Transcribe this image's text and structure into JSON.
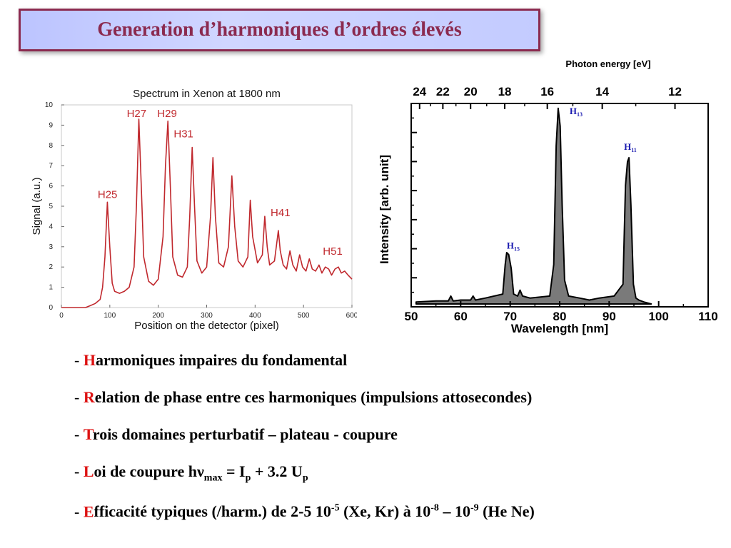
{
  "slide": {
    "title": "Generation d’harmoniques d’ordres élevés",
    "bullets": [
      {
        "first": "H",
        "rest": "armoniques impaires du fondamental"
      },
      {
        "first": "R",
        "rest": "elation de phase entre ces harmoniques (impulsions attosecondes)"
      },
      {
        "first": "T",
        "rest": "rois domaines perturbatif – plateau - coupure"
      },
      {
        "first": "L",
        "rest": "oi de coupure hν_{max} = I_{p} + 3.2 U_{p}"
      },
      {
        "first": "E",
        "rest": "fficacité typiques (/harm.) de 2-5 10^{-5} (Xe, Kr) à 10^{-8} – 10^{-9} (He Ne)"
      }
    ]
  },
  "chart_data": [
    {
      "type": "line",
      "title": "Spectrum in Xenon at 1800 nm",
      "xlabel": "Position on the detector (pixel)",
      "ylabel": "Signal (a.u.)",
      "xlim": [
        0,
        600
      ],
      "ylim": [
        0,
        10
      ],
      "xticks": [
        0,
        100,
        200,
        300,
        400,
        500,
        600
      ],
      "yticks": [
        0,
        1,
        2,
        3,
        4,
        5,
        6,
        7,
        8,
        9,
        10
      ],
      "color": "#c0282d",
      "series": [
        {
          "x": [
            0,
            50,
            60,
            70,
            80,
            85,
            90,
            95,
            100,
            105,
            110,
            120,
            130,
            140,
            150,
            155,
            160,
            165,
            170,
            180,
            190,
            200,
            210,
            215,
            220,
            225,
            230,
            240,
            250,
            260,
            265,
            270,
            275,
            280,
            290,
            300,
            308,
            313,
            318,
            325,
            335,
            345,
            352,
            358,
            365,
            375,
            385,
            390,
            395,
            405,
            415,
            420,
            425,
            430,
            440,
            448,
            452,
            458,
            465,
            472,
            478,
            485,
            492,
            498,
            505,
            512,
            518,
            525,
            532,
            538,
            545,
            552,
            558,
            565,
            572,
            578,
            585,
            592,
            600
          ],
          "y": [
            0,
            0,
            0.1,
            0.2,
            0.4,
            1,
            2.5,
            5.2,
            3,
            1.2,
            0.8,
            0.7,
            0.8,
            1,
            2,
            5,
            9.3,
            6,
            2.5,
            1.3,
            1.1,
            1.4,
            3.5,
            7,
            9.2,
            6,
            2.5,
            1.6,
            1.5,
            2,
            4.5,
            7.9,
            5,
            2.3,
            1.7,
            2,
            4.5,
            7.4,
            4.5,
            2.2,
            2,
            3,
            6.5,
            4,
            2.3,
            2,
            2.5,
            5.3,
            3.5,
            2.2,
            2.6,
            4.5,
            3,
            2.1,
            2.3,
            3.8,
            2.8,
            2.1,
            1.9,
            2.8,
            2.1,
            1.8,
            2.6,
            2,
            1.8,
            2.4,
            1.9,
            1.8,
            2.1,
            1.7,
            2,
            1.9,
            1.6,
            1.9,
            2,
            1.7,
            1.8,
            1.6,
            1.4
          ]
        }
      ],
      "annotations": [
        {
          "text": "H25",
          "x": 75,
          "y": 5.4
        },
        {
          "text": "H27",
          "x": 135,
          "y": 9.4
        },
        {
          "text": "H29",
          "x": 198,
          "y": 9.4
        },
        {
          "text": "H31",
          "x": 232,
          "y": 8.4
        },
        {
          "text": "H41",
          "x": 432,
          "y": 4.5
        },
        {
          "text": "H51",
          "x": 540,
          "y": 2.6
        }
      ]
    },
    {
      "type": "area",
      "title": "Photon energy [eV]",
      "xlabel": "Wavelength [nm]",
      "ylabel": "Intensity [arb. unit]",
      "xlim": [
        50,
        110
      ],
      "ylim": [
        0,
        1
      ],
      "xticks": [
        50,
        60,
        70,
        80,
        90,
        100,
        110
      ],
      "top_axis_ticks": [
        {
          "label": "24",
          "wavelength": 51.7
        },
        {
          "label": "22",
          "wavelength": 56.4
        },
        {
          "label": "20",
          "wavelength": 62
        },
        {
          "label": "18",
          "wavelength": 68.9
        },
        {
          "label": "16",
          "wavelength": 77.5
        },
        {
          "label": "14",
          "wavelength": 88.6
        },
        {
          "label": "12",
          "wavelength": 103.3
        }
      ],
      "fill": "#7a7a7a",
      "series": [
        {
          "x": [
            51,
            55,
            57.5,
            58,
            58.5,
            60,
            62,
            62.5,
            63,
            65,
            68.5,
            69,
            69.3,
            69.7,
            70.2,
            70.7,
            71.5,
            72,
            72.5,
            74,
            78,
            78.8,
            79.3,
            79.7,
            80.1,
            80.5,
            81,
            81.8,
            84,
            86,
            88,
            91,
            92.8,
            93.3,
            93.7,
            94,
            94.4,
            94.9,
            95.4,
            96,
            97,
            98.5
          ],
          "y": [
            0.01,
            0.015,
            0.015,
            0.04,
            0.015,
            0.02,
            0.02,
            0.04,
            0.02,
            0.03,
            0.05,
            0.2,
            0.26,
            0.25,
            0.18,
            0.05,
            0.04,
            0.07,
            0.04,
            0.03,
            0.04,
            0.2,
            0.8,
            0.99,
            0.9,
            0.5,
            0.12,
            0.04,
            0.03,
            0.02,
            0.03,
            0.04,
            0.1,
            0.6,
            0.72,
            0.74,
            0.5,
            0.1,
            0.03,
            0.02,
            0.01,
            0.0
          ]
        }
      ],
      "annotations": [
        {
          "label": "H",
          "sub": "15",
          "x": 69.3,
          "y": 0.28
        },
        {
          "label": "H",
          "sub": "13",
          "x": 82,
          "y": 0.96
        },
        {
          "label": "H",
          "sub": "11",
          "x": 93,
          "y": 0.78
        }
      ]
    }
  ]
}
